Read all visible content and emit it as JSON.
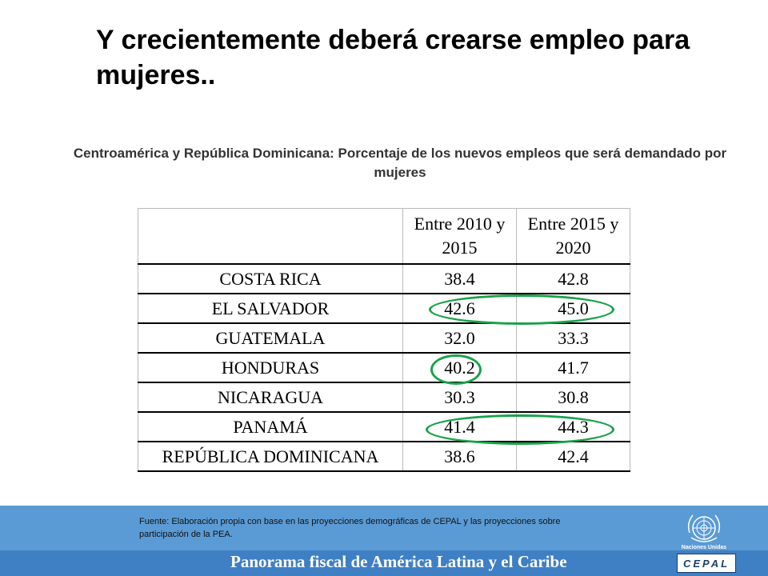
{
  "title": "Y crecientemente deberá  crearse  empleo para mujeres..",
  "subtitle": "Centroamérica y República Dominicana: Porcentaje de los nuevos empleos que será demandado por mujeres",
  "table": {
    "headers": [
      "",
      "Entre 2010 y 2015",
      "Entre 2015 y 2020"
    ],
    "rows": [
      [
        "COSTA RICA",
        "38.4",
        "42.8"
      ],
      [
        "EL SALVADOR",
        "42.6",
        "45.0"
      ],
      [
        "GUATEMALA",
        "32.0",
        "33.3"
      ],
      [
        "HONDURAS",
        "40.2",
        "41.7"
      ],
      [
        "NICARAGUA",
        "30.3",
        "30.8"
      ],
      [
        "PANAMÁ",
        "41.4",
        "44.3"
      ],
      [
        "REPÚBLICA DOMINICANA",
        "38.6",
        "42.4"
      ]
    ]
  },
  "highlight_color": "#1aa24a",
  "source": "Fuente: Elaboración propia con base en las proyecciones demográficas de CEPAL y las proyecciones sobre participación de la PEA.",
  "footer": {
    "text": "Panorama fiscal de América Latina y el Caribe",
    "un_label": "Naciones Unidas",
    "cepal_logo": "CEPAL",
    "background_color": "#5b9bd5"
  }
}
